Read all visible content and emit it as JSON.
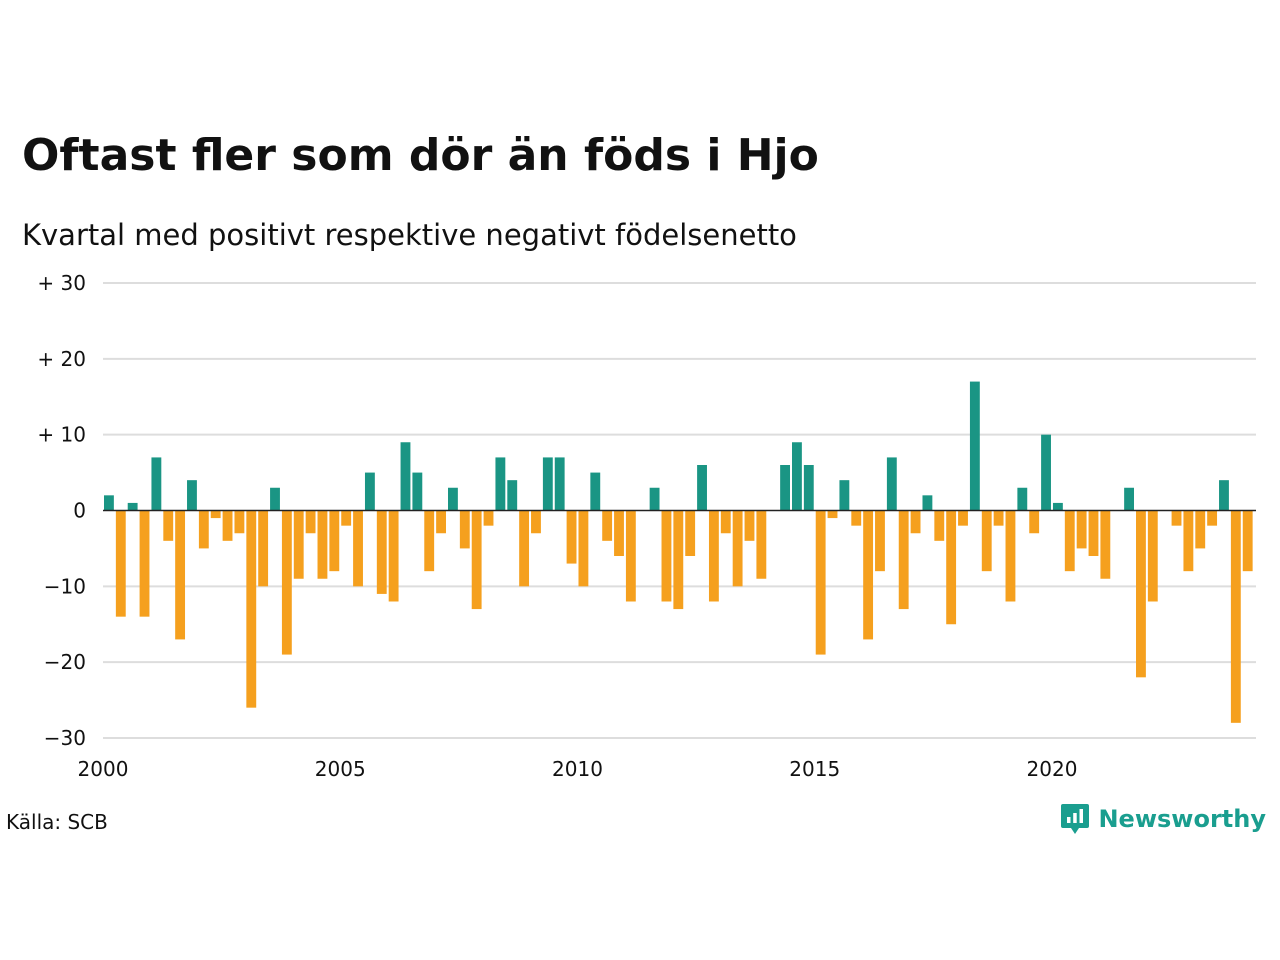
{
  "chart_data": {
    "type": "bar",
    "title": "Oftast fler som dör än föds i Hjo",
    "subtitle": "Kvartal med positivt respektive negativt födelsenetto",
    "x_start": 2000.0,
    "x_step": 0.25,
    "values": [
      2,
      -14,
      1,
      -14,
      7,
      -4,
      -17,
      4,
      -5,
      -1,
      -4,
      -3,
      -26,
      -10,
      3,
      -19,
      -9,
      -3,
      -9,
      -8,
      -2,
      -10,
      5,
      -11,
      -12,
      9,
      5,
      -8,
      -3,
      3,
      -5,
      -13,
      -2,
      7,
      4,
      -10,
      -3,
      7,
      7,
      -7,
      -10,
      5,
      -4,
      -6,
      -12,
      0,
      3,
      -12,
      -13,
      -6,
      6,
      -12,
      -3,
      -10,
      -4,
      -9,
      0,
      6,
      9,
      6,
      -19,
      -1,
      4,
      -2,
      -17,
      -8,
      7,
      -13,
      -3,
      2,
      -4,
      -15,
      -2,
      17,
      -8,
      -2,
      -12,
      3,
      -3,
      10,
      1,
      -8,
      -5,
      -6,
      -9,
      0,
      3,
      -22,
      -12,
      0,
      -2,
      -8,
      -5,
      -2,
      4,
      -28,
      -8
    ],
    "xlim": [
      2000,
      2024.3
    ],
    "ylim": [
      -30,
      30
    ],
    "y_ticks": [
      30,
      20,
      10,
      0,
      -10,
      -20,
      -30
    ],
    "y_tick_labels": [
      "+ 30",
      "+ 20",
      "+ 10",
      "0",
      "−10",
      "−20",
      "−30"
    ],
    "x_ticks": [
      2000,
      2005,
      2010,
      2015,
      2020
    ],
    "x_tick_labels": [
      "2000",
      "2005",
      "2010",
      "2015",
      "2020"
    ],
    "grid": true,
    "colors": {
      "positive": "#1a9584",
      "negative": "#f5a01e",
      "grid": "#dddddd",
      "zero_line": "#222222"
    }
  },
  "footer": {
    "source": "Källa: SCB"
  },
  "brand": {
    "name": "Newsworthy",
    "color": "#1a9e8f",
    "icon": "newsworthy-logo-icon"
  }
}
